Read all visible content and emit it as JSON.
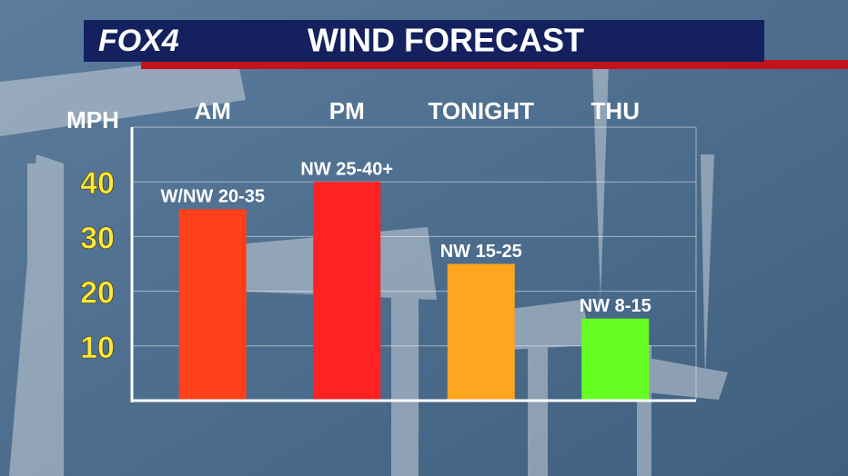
{
  "chart_data": {
    "type": "bar",
    "logo": "FOX4",
    "title": "WIND FORECAST",
    "y_label": "MPH",
    "categories": [
      "AM",
      "PM",
      "TONIGHT",
      "THU"
    ],
    "values": [
      35,
      40,
      25,
      15
    ],
    "value_labels": [
      "W/NW 20-35",
      "NW 25-40+",
      "NW 15-25",
      "NW 8-15"
    ],
    "colors": [
      "#ff4019",
      "#ff2222",
      "#ffa51f",
      "#66ff22"
    ],
    "ylim": [
      0,
      50
    ],
    "yticks": [
      10,
      20,
      30,
      40
    ],
    "grid": true
  }
}
